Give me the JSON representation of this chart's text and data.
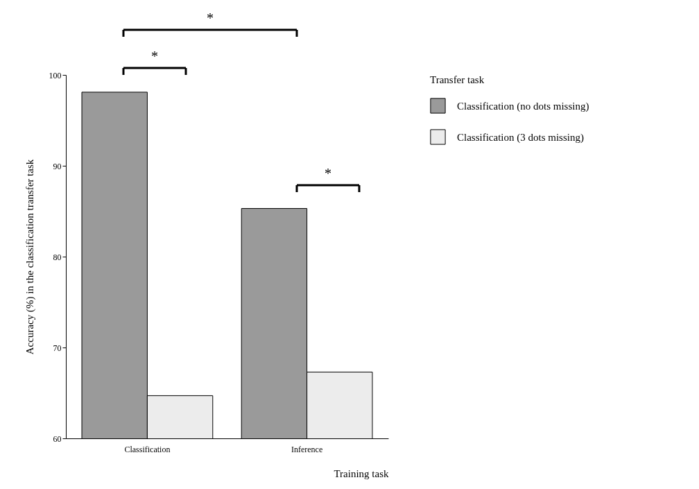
{
  "chart_data": {
    "type": "bar",
    "xlabel": "Training task",
    "ylabel": "Accuracy (%) in the classification transfer task",
    "legend_title": "Transfer task",
    "legend": "top right",
    "grid": false,
    "categories": [
      "Classification",
      "Inference"
    ],
    "series": [
      {
        "name": "Classification (no dots missing)",
        "color": "#9a9a9a",
        "values": [
          98.1,
          85.3
        ]
      },
      {
        "name": "Classification (3 dots missing)",
        "color": "#ececec",
        "values": [
          64.7,
          67.3
        ]
      }
    ],
    "ylim": [
      60,
      100
    ],
    "yticks": [
      60,
      70,
      80,
      90,
      100
    ],
    "annotations": [
      "*",
      "*",
      "*"
    ]
  }
}
